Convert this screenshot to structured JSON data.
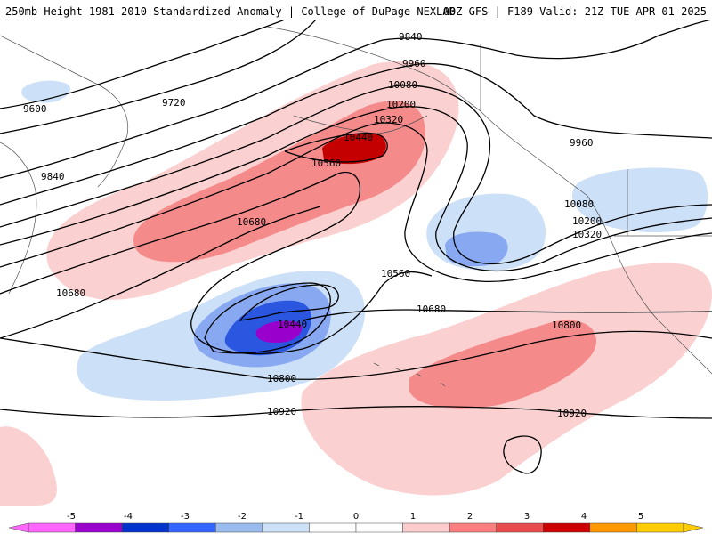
{
  "header": {
    "left": "250mb Height 1981-2010 Standardized Anomaly | College of DuPage NEXLAB",
    "right": "00Z GFS | F189 Valid: 21Z TUE APR 01 2025"
  },
  "contour_labels": [
    "9600",
    "9720",
    "9840",
    "9840",
    "9960",
    "9960",
    "10080",
    "10080",
    "10200",
    "10200",
    "10320",
    "10320",
    "10440",
    "10440",
    "10560",
    "10560",
    "10680",
    "10680",
    "10680",
    "10800",
    "10800",
    "10920",
    "10920"
  ],
  "colorbar": {
    "ticks": [
      "-5",
      "-4",
      "-3",
      "-2",
      "-1",
      "0",
      "1",
      "2",
      "3",
      "4",
      "5"
    ],
    "colors": [
      "#ff66ff",
      "#9900cc",
      "#0033cc",
      "#3366ff",
      "#99bbee",
      "#cce0f8",
      "#ffffff",
      "#ffffff",
      "#fccccc",
      "#fc7f7f",
      "#e84c4c",
      "#cc0000",
      "#ff9900",
      "#ffcc00"
    ]
  },
  "anomaly_colors": {
    "pos1": "#fbd0d0",
    "pos2": "#f58a8a",
    "pos3": "#e85757",
    "pos4": "#c40000",
    "neg1": "#cce0f7",
    "neg2": "#88a9f2",
    "neg3": "#2a56e0",
    "neg4": "#1133aa",
    "neg5": "#9a00cc"
  }
}
